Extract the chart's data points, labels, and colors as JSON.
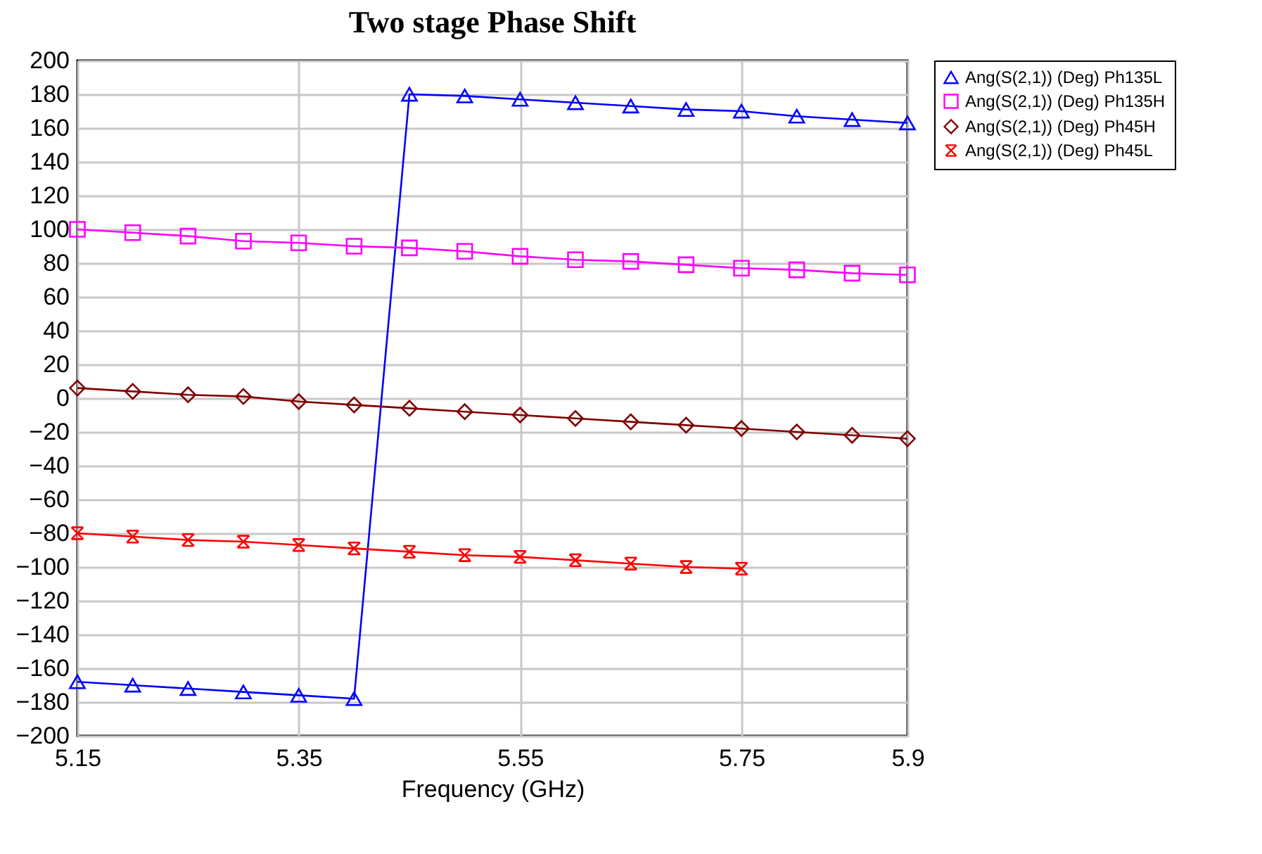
{
  "chart_data": {
    "type": "line",
    "title": "Two stage Phase Shift",
    "xlabel": "Frequency (GHz)",
    "x": [
      5.15,
      5.2,
      5.25,
      5.3,
      5.35,
      5.4,
      5.45,
      5.5,
      5.55,
      5.6,
      5.65,
      5.7,
      5.75,
      5.8,
      5.85,
      5.9
    ],
    "series": [
      {
        "name": "Ang(S(2,1)) (Deg) Ph135L",
        "color": "#0000ff",
        "marker": "triangle",
        "values": [
          -168,
          -170,
          -172,
          -174,
          -176,
          -178,
          180,
          179,
          177,
          175,
          173,
          171,
          170,
          167,
          165,
          163
        ]
      },
      {
        "name": "Ang(S(2,1)) (Deg) Ph135H",
        "color": "#ff00ff",
        "marker": "square",
        "values": [
          100,
          98,
          96,
          93,
          92,
          90,
          89,
          87,
          84,
          82,
          81,
          79,
          77,
          76,
          74,
          73
        ]
      },
      {
        "name": "Ang(S(2,1)) (Deg) Ph45H",
        "color": "#800000",
        "marker": "diamond",
        "values": [
          6,
          4,
          2,
          1,
          -2,
          -4,
          -6,
          -8,
          -10,
          -12,
          -14,
          -16,
          -18,
          -20,
          -22,
          -24
        ]
      },
      {
        "name": "Ang(S(2,1)) (Deg) Ph45L",
        "color": "#ff0000",
        "marker": "cross",
        "values": [
          -80,
          -82,
          -84,
          -85,
          -87,
          -89,
          -91,
          -93,
          -94,
          -96,
          -98,
          -100,
          -101,
          null,
          null,
          null
        ]
      }
    ],
    "xlim": [
      5.15,
      5.9
    ],
    "xticks": [
      5.15,
      5.35,
      5.55,
      5.75,
      5.9
    ],
    "ylim": [
      -200,
      200
    ],
    "yticks": [
      -200,
      -180,
      -160,
      -140,
      -120,
      -100,
      -80,
      -60,
      -40,
      -20,
      0,
      20,
      40,
      60,
      80,
      100,
      120,
      140,
      160,
      180,
      200
    ],
    "grid": true,
    "legend": "right",
    "line_style": "solid"
  }
}
